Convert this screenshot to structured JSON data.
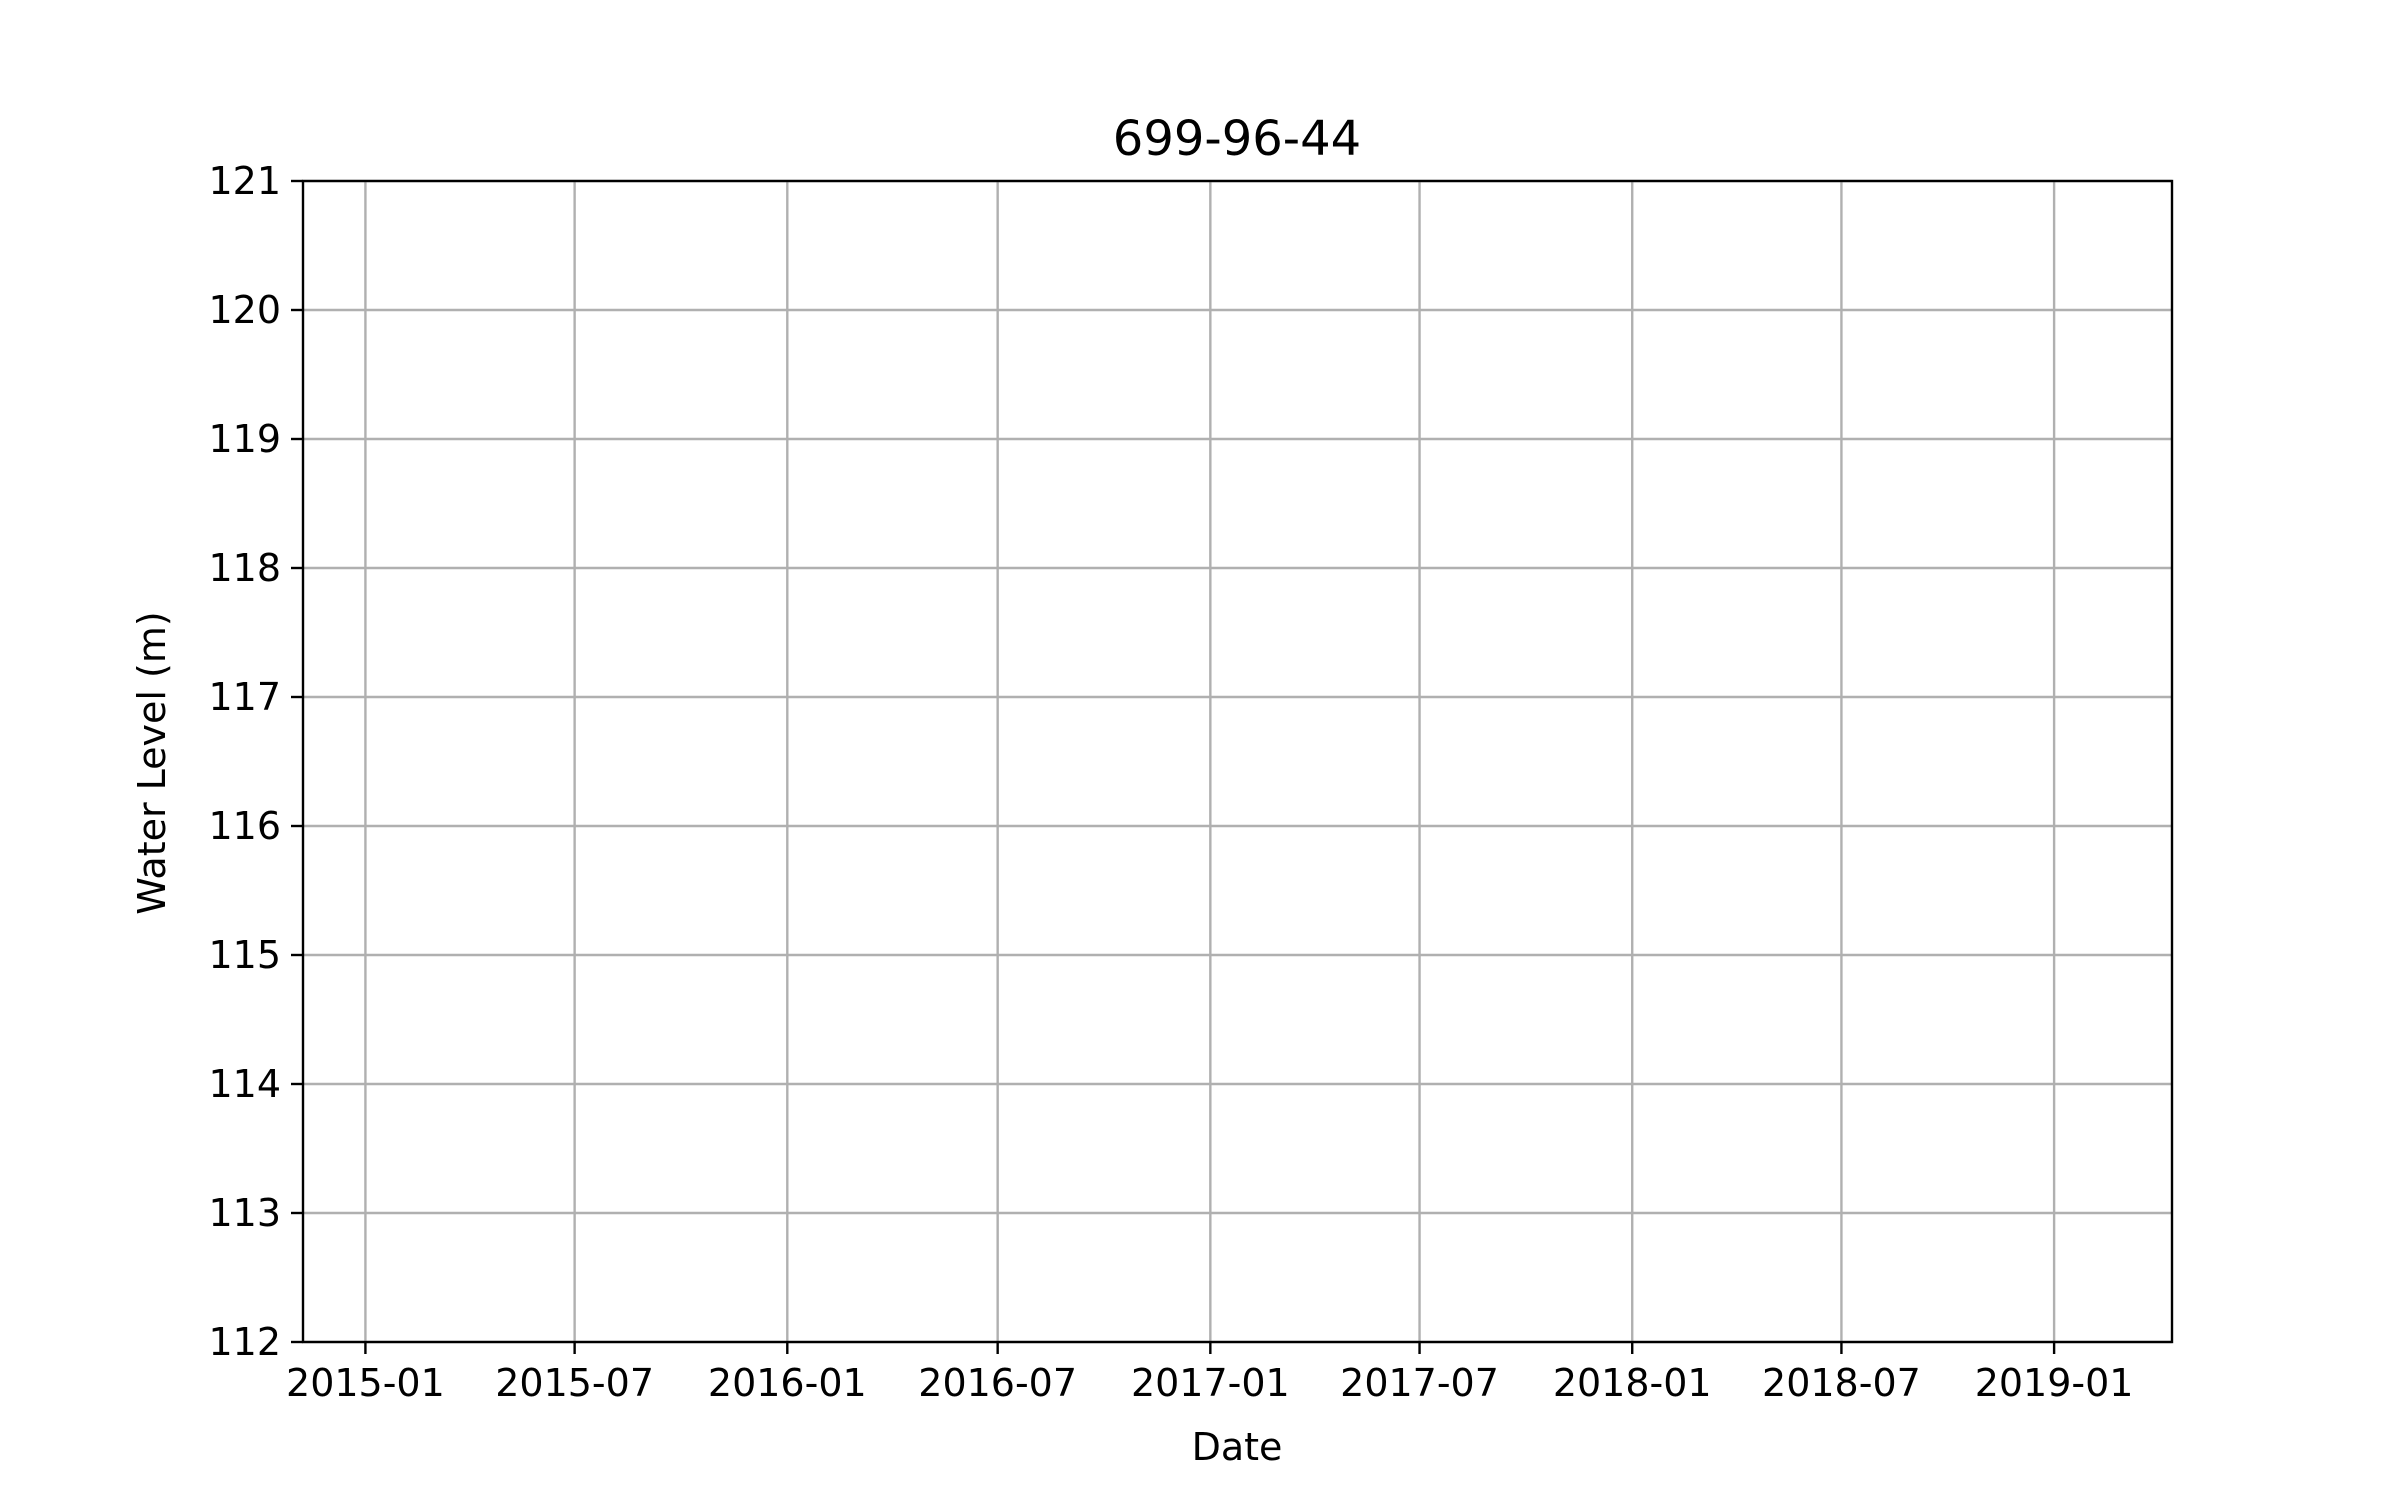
{
  "chart_data": {
    "type": "line",
    "title": "699-96-44",
    "xlabel": "Date",
    "ylabel": "Water Level (m)",
    "x_axis_type": "date",
    "xlim": [
      "2014-11-08",
      "2019-04-13"
    ],
    "ylim": [
      112,
      121
    ],
    "x_ticks": [
      "2015-01",
      "2015-07",
      "2016-01",
      "2016-07",
      "2017-01",
      "2017-07",
      "2018-01",
      "2018-07",
      "2019-01"
    ],
    "y_ticks": [
      112,
      113,
      114,
      115,
      116,
      117,
      118,
      119,
      120,
      121
    ],
    "grid": true,
    "series": [],
    "colors": {
      "grid": "#b0b0b0",
      "axes": "#000000",
      "background": "#ffffff"
    }
  }
}
